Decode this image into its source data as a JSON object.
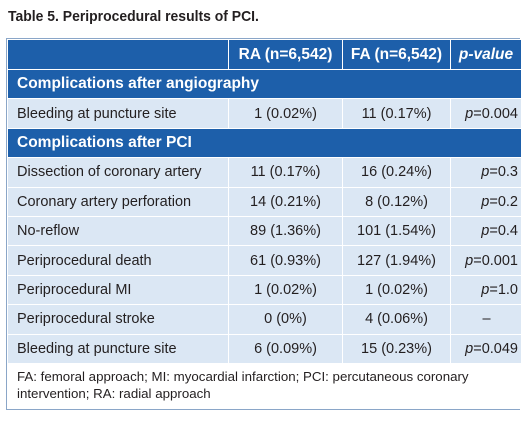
{
  "caption": "Table 5. Periprocedural results of PCI.",
  "header": {
    "col0": "",
    "col1": "RA (n=6,542)",
    "col2": "FA (n=6,542)",
    "col3": "p-value"
  },
  "sections": [
    {
      "title": "Complications after angiography",
      "rows": [
        {
          "label": "Bleeding at puncture site",
          "ra": "1 (0.02%)",
          "fa": "11 (0.17%)",
          "p_prefix": "p",
          "p_value": "=0.004"
        }
      ]
    },
    {
      "title": "Complications after PCI",
      "rows": [
        {
          "label": "Dissection of coronary artery",
          "ra": "11 (0.17%)",
          "fa": "16 (0.24%)",
          "p_prefix": "p",
          "p_value": "=0.3"
        },
        {
          "label": "Coronary artery perforation",
          "ra": "14 (0.21%)",
          "fa": "8 (0.12%)",
          "p_prefix": "p",
          "p_value": "=0.2"
        },
        {
          "label": "No-reflow",
          "ra": "89 (1.36%)",
          "fa": "101 (1.54%)",
          "p_prefix": "p",
          "p_value": "=0.4"
        },
        {
          "label": "Periprocedural death",
          "ra": "61 (0.93%)",
          "fa": "127 (1.94%)",
          "p_prefix": "p",
          "p_value": "=0.001"
        },
        {
          "label": "Periprocedural MI",
          "ra": "1 (0.02%)",
          "fa": "1 (0.02%)",
          "p_prefix": "p",
          "p_value": "=1.0"
        },
        {
          "label": "Periprocedural stroke",
          "ra": "0 (0%)",
          "fa": "4 (0.06%)",
          "p_prefix": "",
          "p_value": "–"
        },
        {
          "label": "Bleeding at puncture site",
          "ra": "6 (0.09%)",
          "fa": "15 (0.23%)",
          "p_prefix": "p",
          "p_value": "=0.049"
        }
      ]
    }
  ],
  "footnote": "FA: femoral approach; MI: myocardial infarction; PCI: percutaneous coronary intervention; RA: radial approach",
  "colors": {
    "header_blue": "#1d5faa",
    "row_light_blue": "#dbe7f4",
    "border_blue": "#8aa6c8"
  }
}
